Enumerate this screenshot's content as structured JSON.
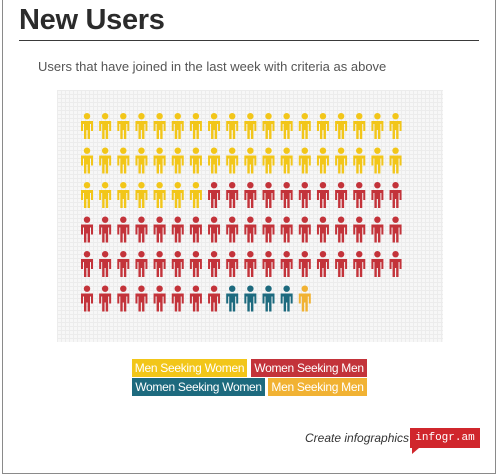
{
  "header": {
    "title": "New Users",
    "subtitle": "Users that have joined in the last week with criteria as above"
  },
  "chart_data": {
    "type": "pictogram",
    "icon": "person-icon",
    "categories": [
      "Men Seeking Women",
      "Women Seeking Men",
      "Women Seeking Women",
      "Men Seeking Men"
    ],
    "values": [
      43,
      55,
      4,
      1
    ],
    "colors": [
      "#f2c619",
      "#c3333a",
      "#1d6a7e",
      "#f1b233"
    ],
    "rows": 6,
    "columns": 18
  },
  "legend": {
    "items": [
      {
        "label": "Men Seeking Women",
        "color": "#f2c619"
      },
      {
        "label": "Women Seeking Men",
        "color": "#c3333a"
      },
      {
        "label": "Women Seeking Women",
        "color": "#1d6a7e"
      },
      {
        "label": "Men Seeking Men",
        "color": "#f1b233"
      }
    ]
  },
  "footer": {
    "create_text": "Create infographics",
    "badge": "infogr.am"
  }
}
